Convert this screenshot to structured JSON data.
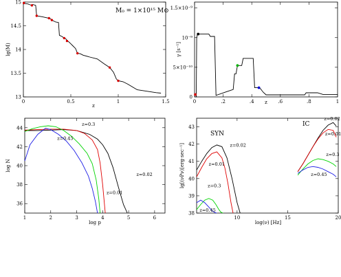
{
  "chart_data": [
    {
      "id": "a",
      "type": "line",
      "xlabel": "z",
      "ylabel": "lg(M)",
      "xlim": [
        0,
        1.5
      ],
      "ylim": [
        13,
        15
      ],
      "xticks": [
        "0",
        "0.5",
        "1",
        "1.5"
      ],
      "yticks": [
        "13",
        "13.5",
        "14",
        "14.5",
        "15"
      ],
      "annotation": "M₀ = 1×10¹⁵ M⊙",
      "series": [
        {
          "color": "#000000",
          "x": [
            0,
            0.01,
            0.05,
            0.06,
            0.09,
            0.1,
            0.13,
            0.14,
            0.2,
            0.27,
            0.29,
            0.3,
            0.32,
            0.34,
            0.37,
            0.38,
            0.41,
            0.43,
            0.45,
            0.46,
            0.48,
            0.5,
            0.52,
            0.55,
            0.57,
            0.6,
            0.63,
            0.7,
            0.78,
            0.85,
            0.91,
            0.95,
            0.98,
            1.0,
            1.05,
            1.1,
            1.2,
            1.3,
            1.4,
            1.45
          ],
          "y": [
            14.99,
            14.97,
            14.96,
            14.95,
            14.93,
            14.95,
            14.93,
            14.71,
            14.69,
            14.66,
            14.64,
            14.62,
            14.6,
            14.58,
            14.57,
            14.3,
            14.27,
            14.24,
            14.22,
            14.18,
            14.16,
            14.12,
            14.08,
            14.02,
            13.92,
            13.91,
            13.88,
            13.84,
            13.8,
            13.7,
            13.62,
            13.52,
            13.38,
            13.34,
            13.32,
            13.27,
            13.15,
            13.12,
            13.09,
            13.08
          ]
        }
      ],
      "markers": [
        {
          "x": 0.005,
          "y": 14.98,
          "color": "#d60000"
        },
        {
          "x": 0.09,
          "y": 14.93,
          "color": "#d60000"
        },
        {
          "x": 0.14,
          "y": 14.71,
          "color": "#d60000"
        },
        {
          "x": 0.27,
          "y": 14.66,
          "color": "#d60000"
        },
        {
          "x": 0.3,
          "y": 14.62,
          "color": "#d60000"
        },
        {
          "x": 0.43,
          "y": 14.24,
          "color": "#d60000"
        },
        {
          "x": 0.46,
          "y": 14.18,
          "color": "#d60000"
        },
        {
          "x": 0.57,
          "y": 13.92,
          "color": "#d60000"
        },
        {
          "x": 0.91,
          "y": 13.62,
          "color": "#d60000"
        },
        {
          "x": 1.0,
          "y": 13.34,
          "color": "#d60000"
        }
      ]
    },
    {
      "id": "b",
      "type": "line",
      "xlabel": "z",
      "ylabel": "γ [s⁻¹]",
      "xlim": [
        0,
        1
      ],
      "ylim": [
        0,
        1.6e-09
      ],
      "xticks": [
        "0",
        ".2",
        ".4",
        ".6",
        ".8",
        "1"
      ],
      "yticks": [
        "0",
        "5×10⁻¹⁰",
        "10⁻⁹",
        "1.5×10⁻⁹"
      ],
      "series": [
        {
          "color": "#000000",
          "x": [
            0,
            0.005,
            0.012,
            0.015,
            0.02,
            0.1,
            0.11,
            0.14,
            0.15,
            0.22,
            0.27,
            0.28,
            0.29,
            0.3,
            0.31,
            0.33,
            0.34,
            0.36,
            0.37,
            0.4,
            0.41,
            0.42,
            0.43,
            0.44,
            0.45,
            0.46,
            0.48,
            0.5,
            0.58,
            0.66,
            0.74,
            0.77,
            0.78,
            0.86,
            0.9,
            0.93,
            0.97,
            1.0
          ],
          "y": [
            0,
            0,
            0,
            1e-09,
            1.06e-09,
            1.06e-09,
            1.02e-09,
            1.02e-09,
            2.5e-11,
            8.5e-11,
            1.25e-10,
            3.9e-10,
            3.9e-10,
            5.3e-10,
            5.3e-10,
            5.3e-10,
            6.5e-10,
            6.5e-10,
            6.5e-10,
            6.5e-10,
            6.5e-10,
            1.55e-10,
            1.55e-10,
            1.55e-10,
            1.55e-10,
            1.4e-10,
            8e-11,
            3.5e-11,
            3.5e-11,
            3.5e-11,
            3.5e-11,
            3.5e-11,
            7e-11,
            7e-11,
            4e-11,
            4e-11,
            4e-11,
            4e-11
          ]
        }
      ],
      "markers": [
        {
          "x": 0.005,
          "y": 4e-11,
          "color": "#d60000"
        },
        {
          "x": 0.025,
          "y": 1.06e-09,
          "color": "#000000"
        },
        {
          "x": 0.3,
          "y": 5.3e-10,
          "color": "#00b000"
        },
        {
          "x": 0.45,
          "y": 1.55e-10,
          "color": "#0000d6"
        }
      ]
    },
    {
      "id": "c",
      "type": "line",
      "xlabel": "log p",
      "ylabel": "log N",
      "xlim": [
        1,
        6.4
      ],
      "ylim": [
        35,
        45
      ],
      "xticks": [
        "1",
        "2",
        "3",
        "4",
        "5",
        "6"
      ],
      "yticks": [
        "36",
        "38",
        "40",
        "42",
        "44"
      ],
      "series": [
        {
          "name": "z=0.02",
          "color": "#000000",
          "x": [
            1.0,
            1.5,
            2.0,
            2.5,
            3.0,
            3.5,
            3.8,
            4.0,
            4.2,
            4.4,
            4.6,
            4.8,
            4.95
          ],
          "y": [
            43.7,
            43.7,
            43.75,
            43.8,
            43.7,
            43.3,
            42.8,
            42.2,
            41.3,
            39.8,
            37.8,
            35.9,
            35.0
          ]
        },
        {
          "name": "z=0.01",
          "color": "#e00000",
          "x": [
            1.0,
            1.5,
            2.0,
            2.5,
            3.0,
            3.3,
            3.6,
            3.8,
            3.9,
            4.0,
            4.05,
            4.1
          ],
          "y": [
            43.75,
            43.8,
            43.85,
            43.85,
            43.7,
            43.4,
            42.7,
            41.7,
            40.3,
            38.0,
            36.5,
            35.0
          ]
        },
        {
          "name": "z=0.3",
          "color": "#00d400",
          "x": [
            1.0,
            1.3,
            1.6,
            1.9,
            2.2,
            2.5,
            2.8,
            3.1,
            3.4,
            3.6,
            3.75,
            3.85,
            3.9
          ],
          "y": [
            43.6,
            43.9,
            44.1,
            44.2,
            44.1,
            43.7,
            43.1,
            42.3,
            41.3,
            40.2,
            38.5,
            36.5,
            35.0
          ]
        },
        {
          "name": "z=0.45",
          "color": "#1e1ee6",
          "x": [
            1.0,
            1.2,
            1.5,
            1.8,
            2.0,
            2.3,
            2.6,
            2.9,
            3.2,
            3.45,
            3.6,
            3.72,
            3.8
          ],
          "y": [
            40.5,
            42.2,
            43.3,
            43.95,
            43.8,
            43.3,
            42.6,
            41.6,
            40.3,
            38.9,
            37.6,
            36.2,
            35.0
          ]
        }
      ],
      "labels": [
        {
          "text": "z=0.3",
          "series": "z=0.3"
        },
        {
          "text": "z=0.45",
          "series": "z=0.45"
        },
        {
          "text": "z=0.02",
          "series": "z=0.02"
        },
        {
          "text": "z=0.01",
          "series": "z=0.01"
        }
      ]
    },
    {
      "id": "d",
      "type": "line",
      "xlabel": "log(ν)  [Hz]",
      "ylabel": "lg[(νPν)[erg·sec⁻¹]",
      "xlim": [
        6,
        20
      ],
      "ylim": [
        38,
        43.5
      ],
      "xticks": [
        "10",
        "15",
        "20"
      ],
      "yticks": [
        "38",
        "39",
        "40",
        "41",
        "42",
        "43"
      ],
      "annotations": [
        "SYN",
        "IC"
      ],
      "series_syn": [
        {
          "name": "z=0.02",
          "color": "#000000",
          "x": [
            6,
            6.5,
            7,
            7.5,
            8,
            8.5,
            9,
            9.5,
            10,
            10.3
          ],
          "y": [
            40.5,
            41.0,
            41.45,
            41.8,
            41.95,
            41.85,
            41.2,
            40.0,
            38.6,
            38.0
          ]
        },
        {
          "name": "z=0.01",
          "color": "#e00000",
          "x": [
            6,
            6.5,
            7,
            7.5,
            8,
            8.5,
            8.8,
            9.1,
            9.4,
            9.6
          ],
          "y": [
            40.1,
            40.65,
            41.15,
            41.45,
            41.55,
            41.2,
            40.6,
            39.7,
            38.6,
            38.0
          ]
        },
        {
          "name": "z=0.3",
          "color": "#00d400",
          "x": [
            6,
            6.4,
            6.8,
            7.2,
            7.6,
            7.9,
            8.2,
            8.4,
            8.6
          ],
          "y": [
            38.2,
            38.5,
            38.75,
            38.85,
            38.75,
            38.5,
            38.2,
            38.05,
            38.0
          ]
        },
        {
          "name": "z=0.45",
          "color": "#1e1ee6",
          "x": [
            6,
            6.4,
            6.8,
            7.2,
            7.5,
            7.8,
            8.0
          ],
          "y": [
            38.6,
            38.75,
            38.6,
            38.35,
            38.15,
            38.03,
            38.0
          ]
        }
      ],
      "series_ic": [
        {
          "name": "z=0.02",
          "color": "#000000",
          "x": [
            16,
            16.5,
            17,
            17.5,
            18,
            18.5,
            19,
            19.5,
            19.8
          ],
          "y": [
            40.4,
            40.85,
            41.35,
            41.85,
            42.35,
            42.8,
            43.1,
            43.25,
            43.05
          ]
        },
        {
          "name": "z=0.01",
          "color": "#e00000",
          "x": [
            16,
            16.5,
            17,
            17.5,
            18,
            18.5,
            19,
            19.5,
            19.8
          ],
          "y": [
            40.4,
            40.85,
            41.35,
            41.85,
            42.3,
            42.65,
            42.85,
            42.8,
            42.4
          ]
        },
        {
          "name": "z=0.3",
          "color": "#00d400",
          "x": [
            16,
            16.5,
            17,
            17.5,
            18,
            18.5,
            19,
            19.5,
            19.8
          ],
          "y": [
            40.2,
            40.55,
            40.85,
            41.05,
            41.15,
            41.1,
            41.0,
            40.85,
            40.7
          ]
        },
        {
          "name": "z=0.45",
          "color": "#1e1ee6",
          "x": [
            16,
            16.5,
            17,
            17.5,
            18,
            18.5,
            19,
            19.5,
            19.8
          ],
          "y": [
            40.3,
            40.5,
            40.65,
            40.7,
            40.65,
            40.55,
            40.4,
            40.25,
            40.1
          ]
        }
      ],
      "labels": [
        {
          "text": "z=0.02",
          "group": "syn"
        },
        {
          "text": "z=0.01",
          "group": "syn"
        },
        {
          "text": "z=0.3",
          "group": "syn"
        },
        {
          "text": "z=0.45",
          "group": "syn"
        },
        {
          "text": "z=0.02",
          "group": "ic"
        },
        {
          "text": "z=0.01",
          "group": "ic"
        },
        {
          "text": "z=0.3",
          "group": "ic"
        },
        {
          "text": "z=0.45",
          "group": "ic"
        }
      ]
    }
  ]
}
